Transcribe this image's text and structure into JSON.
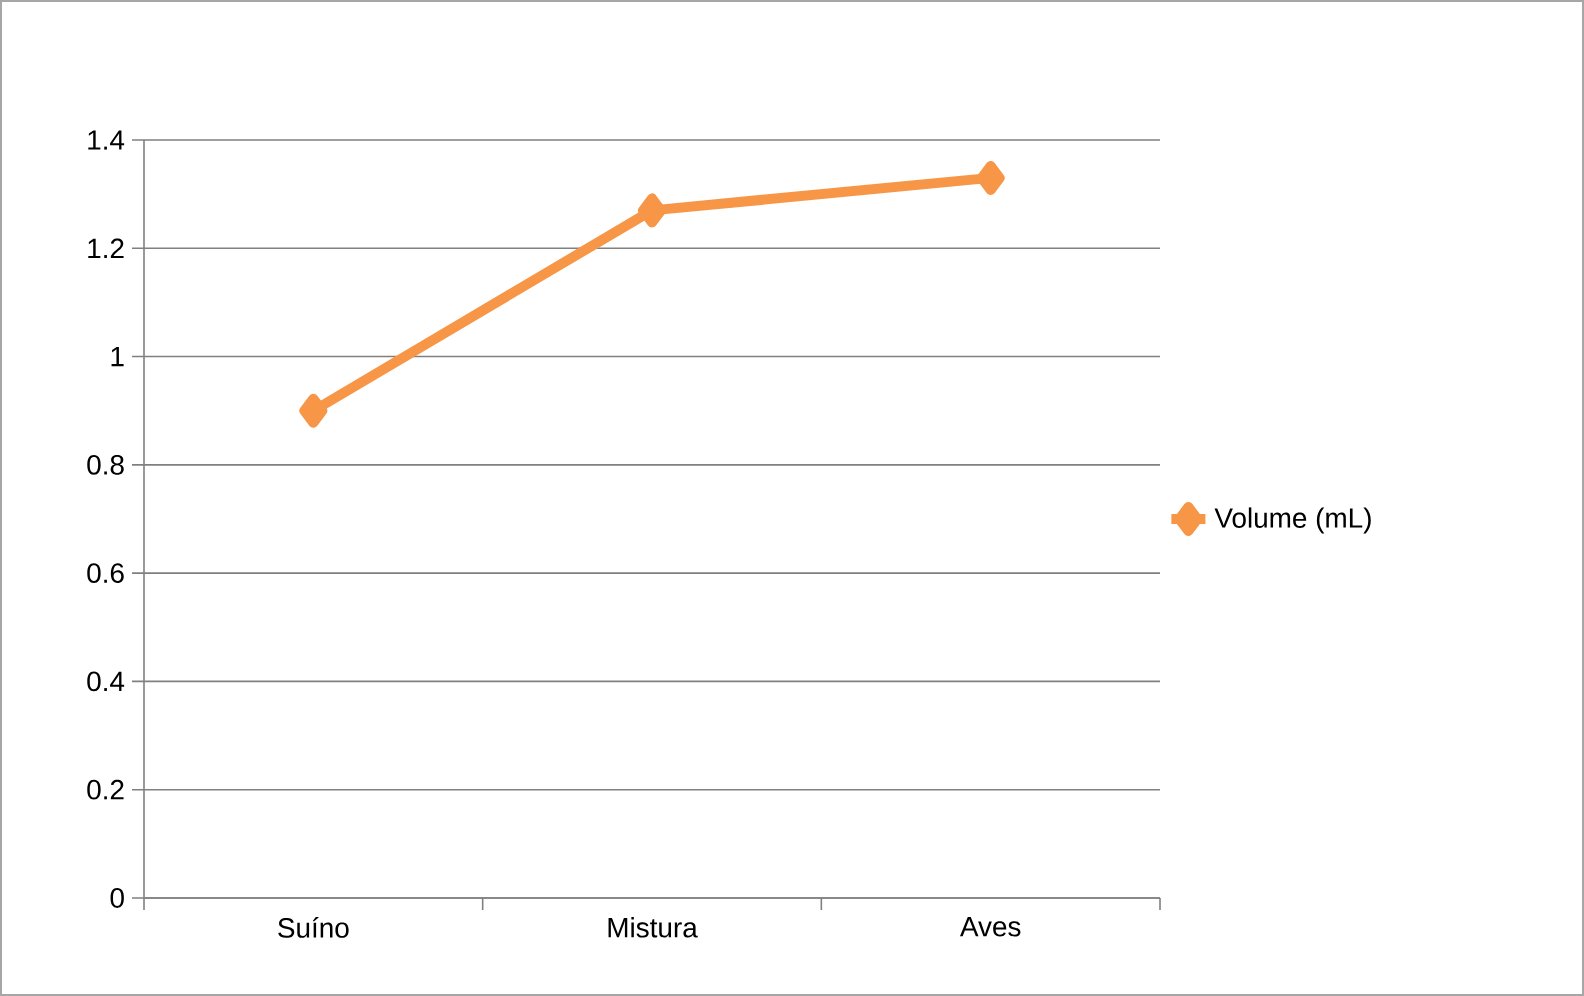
{
  "chart_data": {
    "type": "line",
    "categories": [
      "Suíno",
      "Mistura",
      "Aves"
    ],
    "series": [
      {
        "name": "Volume (mL)",
        "color": "#f79646",
        "values": [
          0.9,
          1.27,
          1.33
        ]
      }
    ],
    "ylim": [
      0,
      1.4
    ],
    "yticks": [
      0,
      0.2,
      0.4,
      0.6,
      0.8,
      1,
      1.2,
      1.4
    ],
    "grid": "y",
    "legend": "right",
    "marker": "diamond",
    "line_style": "solid"
  }
}
